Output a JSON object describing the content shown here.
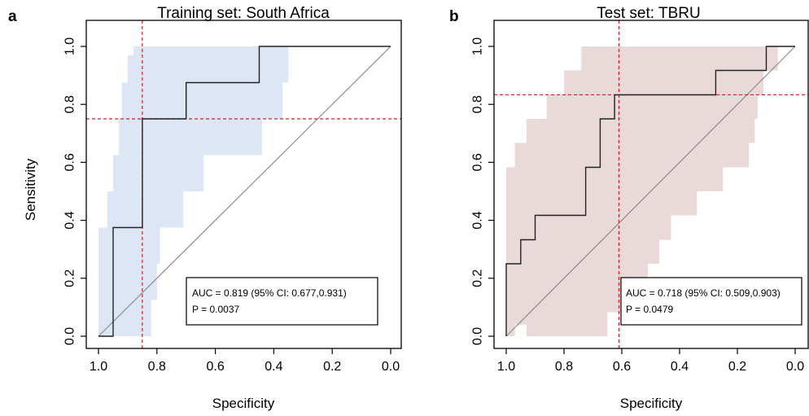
{
  "panels": [
    {
      "letter": "a",
      "title": "Training set: South Africa",
      "xlabel": "Specificity",
      "ylabel": "Sensitivity",
      "auc_text": "AUC = 0.819 (95% CI: 0.677,0.931)",
      "p_text": "P =  0.0037",
      "ci_color": "#dce6f4"
    },
    {
      "letter": "b",
      "title": "Test set: TBRU",
      "xlabel": "Specificity",
      "ylabel": "",
      "auc_text": "AUC = 0.718 (95% CI: 0.509,0.903)",
      "p_text": "P =  0.0479",
      "ci_color": "#ead9d9"
    }
  ],
  "chart_data": [
    {
      "type": "line",
      "title": "Training set: South Africa",
      "xlabel": "Specificity",
      "ylabel": "Sensitivity",
      "xlim": [
        1.0,
        0.0
      ],
      "ylim": [
        0.0,
        1.0
      ],
      "x_reversed": true,
      "xticks": [
        1.0,
        0.8,
        0.6,
        0.4,
        0.2,
        0.0
      ],
      "yticks": [
        0.0,
        0.2,
        0.4,
        0.6,
        0.8,
        1.0
      ],
      "xtick_labels": [
        "1.0",
        "0.8",
        "0.6",
        "0.4",
        "0.2",
        "0.0"
      ],
      "ytick_labels": [
        "0.0",
        "0.2",
        "0.4",
        "0.6",
        "0.8",
        "1.0"
      ],
      "roc": {
        "specificity": [
          1.0,
          0.95,
          0.95,
          0.85,
          0.85,
          0.7,
          0.7,
          0.45,
          0.45,
          0.0
        ],
        "sensitivity": [
          0.0,
          0.0,
          0.375,
          0.375,
          0.75,
          0.75,
          0.875,
          0.875,
          1.0,
          1.0
        ]
      },
      "ci_band": {
        "upper": [
          [
            1.0,
            0.375
          ],
          [
            0.97,
            0.375
          ],
          [
            0.97,
            0.5
          ],
          [
            0.95,
            0.5
          ],
          [
            0.95,
            0.625
          ],
          [
            0.93,
            0.625
          ],
          [
            0.93,
            0.75
          ],
          [
            0.92,
            0.75
          ],
          [
            0.92,
            0.875
          ],
          [
            0.9,
            0.875
          ],
          [
            0.9,
            0.97
          ],
          [
            0.88,
            0.97
          ],
          [
            0.88,
            1.0
          ],
          [
            0.35,
            1.0
          ]
        ],
        "lower": [
          [
            0.35,
            1.0
          ],
          [
            0.35,
            0.875
          ],
          [
            0.37,
            0.875
          ],
          [
            0.37,
            0.75
          ],
          [
            0.44,
            0.75
          ],
          [
            0.44,
            0.625
          ],
          [
            0.64,
            0.625
          ],
          [
            0.64,
            0.5
          ],
          [
            0.71,
            0.5
          ],
          [
            0.71,
            0.375
          ],
          [
            0.79,
            0.375
          ],
          [
            0.79,
            0.25
          ],
          [
            0.8,
            0.25
          ],
          [
            0.8,
            0.125
          ],
          [
            0.82,
            0.125
          ],
          [
            0.82,
            0.0
          ],
          [
            0.88,
            0.0
          ],
          [
            0.88,
            0.0
          ],
          [
            1.0,
            0.0
          ]
        ]
      },
      "best_threshold": {
        "specificity": 0.85,
        "sensitivity": 0.75
      },
      "auc": 0.819,
      "auc_ci": [
        0.677,
        0.931
      ],
      "p_value": 0.0037,
      "legend": "bottom-right"
    },
    {
      "type": "line",
      "title": "Test set: TBRU",
      "xlabel": "Specificity",
      "ylabel": "",
      "xlim": [
        1.0,
        0.0
      ],
      "ylim": [
        0.0,
        1.0
      ],
      "x_reversed": true,
      "xticks": [
        1.0,
        0.8,
        0.6,
        0.4,
        0.2,
        0.0
      ],
      "yticks": [
        0.0,
        0.2,
        0.4,
        0.6,
        0.8,
        1.0
      ],
      "xtick_labels": [
        "1.0",
        "0.8",
        "0.6",
        "0.4",
        "0.2",
        "0.0"
      ],
      "ytick_labels": [
        "0.0",
        "0.2",
        "0.4",
        "0.6",
        "0.8",
        "1.0"
      ],
      "roc": {
        "specificity": [
          1.0,
          1.0,
          0.95,
          0.95,
          0.9,
          0.9,
          0.725,
          0.725,
          0.675,
          0.675,
          0.625,
          0.625,
          0.275,
          0.275,
          0.1,
          0.1,
          0.0
        ],
        "sensitivity": [
          0.0,
          0.25,
          0.25,
          0.333,
          0.333,
          0.417,
          0.417,
          0.583,
          0.583,
          0.75,
          0.75,
          0.833,
          0.833,
          0.917,
          0.917,
          1.0,
          1.0
        ]
      },
      "ci_band": {
        "upper": [
          [
            1.0,
            0.583
          ],
          [
            0.97,
            0.583
          ],
          [
            0.97,
            0.667
          ],
          [
            0.93,
            0.667
          ],
          [
            0.93,
            0.75
          ],
          [
            0.86,
            0.75
          ],
          [
            0.86,
            0.833
          ],
          [
            0.8,
            0.833
          ],
          [
            0.8,
            0.917
          ],
          [
            0.74,
            0.917
          ],
          [
            0.74,
            1.0
          ],
          [
            0.0,
            1.0
          ]
        ],
        "lower": [
          [
            0.0,
            1.0
          ],
          [
            0.06,
            1.0
          ],
          [
            0.06,
            0.917
          ],
          [
            0.11,
            0.917
          ],
          [
            0.11,
            0.833
          ],
          [
            0.13,
            0.833
          ],
          [
            0.13,
            0.75
          ],
          [
            0.14,
            0.75
          ],
          [
            0.14,
            0.667
          ],
          [
            0.16,
            0.667
          ],
          [
            0.16,
            0.583
          ],
          [
            0.25,
            0.583
          ],
          [
            0.25,
            0.5
          ],
          [
            0.34,
            0.5
          ],
          [
            0.34,
            0.417
          ],
          [
            0.43,
            0.417
          ],
          [
            0.43,
            0.333
          ],
          [
            0.47,
            0.333
          ],
          [
            0.47,
            0.25
          ],
          [
            0.51,
            0.25
          ],
          [
            0.51,
            0.167
          ],
          [
            0.57,
            0.167
          ],
          [
            0.57,
            0.083
          ],
          [
            0.65,
            0.083
          ],
          [
            0.65,
            0.0
          ],
          [
            0.93,
            0.0
          ],
          [
            0.93,
            0.04
          ],
          [
            0.97,
            0.04
          ],
          [
            0.97,
            0.0
          ],
          [
            1.0,
            0.0
          ]
        ]
      },
      "best_threshold": {
        "specificity": 0.61,
        "sensitivity": 0.833
      },
      "auc": 0.718,
      "auc_ci": [
        0.509,
        0.903
      ],
      "p_value": 0.0479,
      "legend": "bottom-right"
    }
  ]
}
